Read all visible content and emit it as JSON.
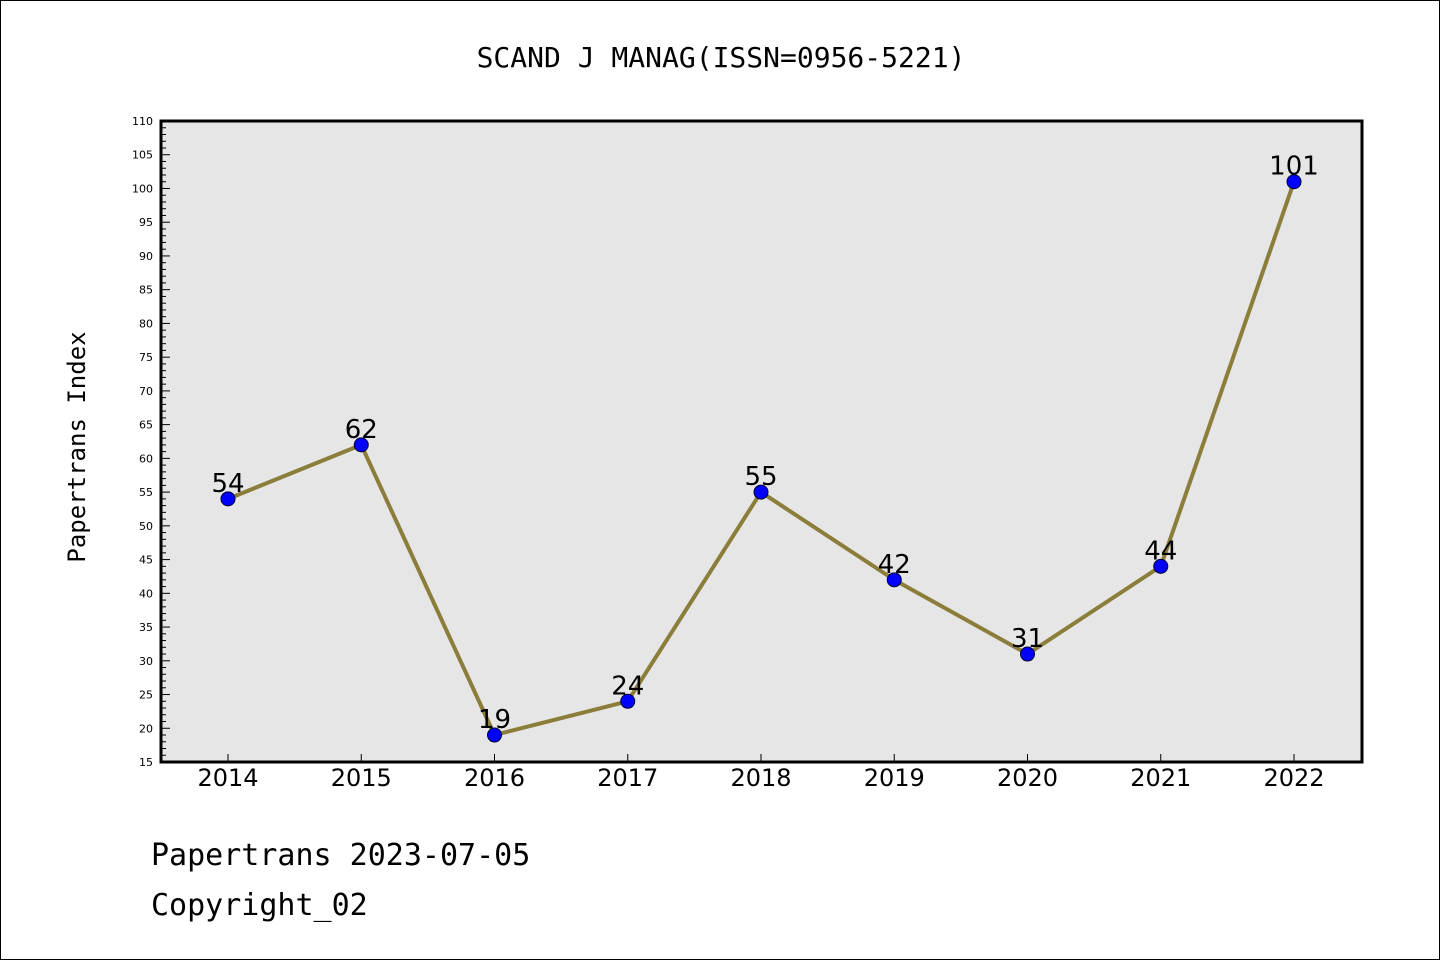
{
  "chart_data": {
    "type": "line",
    "title": "SCAND J MANAG(ISSN=0956-5221)",
    "xlabel": "",
    "ylabel": "Papertrans Index",
    "categories": [
      "2014",
      "2015",
      "2016",
      "2017",
      "2018",
      "2019",
      "2020",
      "2021",
      "2022"
    ],
    "values": [
      54,
      62,
      19,
      24,
      55,
      42,
      31,
      44,
      101
    ],
    "data_labels": [
      "54",
      "62",
      "19",
      "24",
      "55",
      "42",
      "31",
      "44",
      "101"
    ],
    "ylim": [
      15,
      110
    ],
    "y_major_ticks": [
      "15",
      "20",
      "25",
      "30",
      "35",
      "40",
      "45",
      "50",
      "55",
      "60",
      "65",
      "70",
      "75",
      "80",
      "85",
      "90",
      "95",
      "100",
      "105",
      "110"
    ],
    "grid": false,
    "legend": "none",
    "line_color": "#8b7d3a",
    "marker_color": "#0000ff",
    "plot_background": "#e6e6e6"
  },
  "footer": {
    "line1": "Papertrans 2023-07-05",
    "line2": "Copyright_02"
  }
}
